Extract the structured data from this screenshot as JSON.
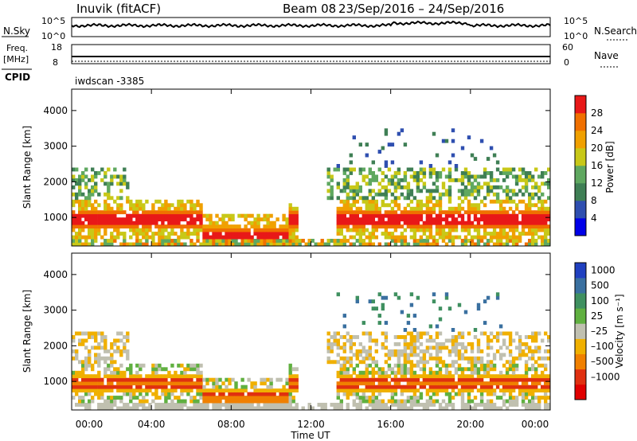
{
  "header": {
    "site": "Inuvik (fitACF)",
    "beam": "Beam 08",
    "date_range": "23/Sep/2016 – 24/Sep/2016"
  },
  "noise_panel": {
    "left_label": "N.Sky",
    "right_label": "N.Search",
    "ticks": [
      "10^5",
      "10^0"
    ]
  },
  "freq_panel": {
    "left_label_1": "Freq.",
    "left_label_2": "[MHz]",
    "left_ticks": [
      "18",
      "8"
    ],
    "right_label": "Nave",
    "right_ticks": [
      "60",
      "0"
    ],
    "cpid_label": "CPID",
    "cpid_value": "iwdscan -3385"
  },
  "chart_data": [
    {
      "type": "heatmap",
      "name": "Power",
      "ylabel": "Slant Range [km]",
      "yticks": [
        "4000",
        "3000",
        "2000",
        "1000"
      ],
      "ylim": [
        200,
        4600
      ],
      "colorbar_label": "Power [dB]",
      "colorbar_ticks": [
        "28",
        "24",
        "20",
        "16",
        "12",
        "8",
        "4"
      ],
      "colors": [
        "#0000e8",
        "#2f4fb0",
        "#3f7f55",
        "#5fa860",
        "#c8c818",
        "#f0a000",
        "#f07000",
        "#e81818"
      ]
    },
    {
      "type": "heatmap",
      "name": "Velocity",
      "ylabel": "Slant Range [km]",
      "yticks": [
        "4000",
        "3000",
        "2000",
        "1000"
      ],
      "ylim": [
        200,
        4600
      ],
      "colorbar_label": "Velocity [m s⁻¹]",
      "colorbar_ticks": [
        "1000",
        "500",
        "100",
        "25",
        "–25",
        "–100",
        "–500",
        "–1000"
      ],
      "colors": [
        "#2040c0",
        "#3a70a0",
        "#3f9060",
        "#60b040",
        "#c0c0b0",
        "#f0b000",
        "#f08000",
        "#e03010",
        "#e00000"
      ]
    }
  ],
  "time_axis": {
    "label": "Time UT",
    "ticks": [
      "00:00",
      "04:00",
      "08:00",
      "12:00",
      "16:00",
      "20:00",
      "00:00"
    ]
  }
}
